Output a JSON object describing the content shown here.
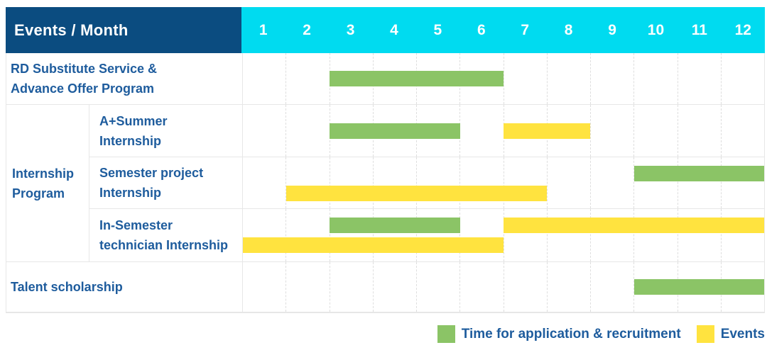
{
  "colors": {
    "header_bg": "#0B4C80",
    "month_header_bg": "#00DBF0",
    "header_text": "#FFFFFF",
    "label_text": "#1E5C9D",
    "grid_line": "#E7E7E7",
    "grid_dash": "#DEDEDE",
    "green": "#8BC466",
    "yellow": "#FFE33F"
  },
  "table": {
    "corner_header": "Events / Month",
    "months": [
      "1",
      "2",
      "3",
      "4",
      "5",
      "6",
      "7",
      "8",
      "9",
      "10",
      "11",
      "12"
    ],
    "rows": [
      {
        "label_lines": [
          "RD Substitute Service &",
          "Advance Offer Program"
        ],
        "label_rowspan": 1,
        "sublabel_lines": null,
        "bars": [
          {
            "color": "green",
            "start_month": 3,
            "end_month": 6,
            "lane": "center"
          }
        ]
      },
      {
        "label_lines": [
          "Internship",
          "Program"
        ],
        "label_rowspan": 3,
        "sublabel_lines": [
          "A+Summer",
          "Internship"
        ],
        "bars": [
          {
            "color": "green",
            "start_month": 3,
            "end_month": 5,
            "lane": "center"
          },
          {
            "color": "yellow",
            "start_month": 7,
            "end_month": 8,
            "lane": "center"
          }
        ]
      },
      {
        "label_lines": null,
        "sublabel_lines": [
          "Semester project",
          "Internship"
        ],
        "bars": [
          {
            "color": "green",
            "start_month": 10,
            "end_month": 12,
            "lane": "top"
          },
          {
            "color": "yellow",
            "start_month": 2,
            "end_month": 7,
            "lane": "bottom"
          }
        ]
      },
      {
        "label_lines": null,
        "sublabel_lines": [
          "In-Semester",
          "technician Internship"
        ],
        "bars": [
          {
            "color": "green",
            "start_month": 3,
            "end_month": 5,
            "lane": "top"
          },
          {
            "color": "yellow",
            "start_month": 7,
            "end_month": 12,
            "lane": "top"
          },
          {
            "color": "yellow",
            "start_month": 1,
            "end_month": 6,
            "lane": "bottom"
          }
        ]
      },
      {
        "label_lines": [
          "Talent scholarship"
        ],
        "label_rowspan": 1,
        "sublabel_lines": null,
        "bars": [
          {
            "color": "green",
            "start_month": 10,
            "end_month": 12,
            "lane": "center"
          }
        ]
      }
    ]
  },
  "legend": [
    {
      "color": "green",
      "label": "Time for application & recruitment"
    },
    {
      "color": "yellow",
      "label": "Events"
    }
  ],
  "chart_data": {
    "type": "bar",
    "subtype": "gantt",
    "title": "Events / Month",
    "xlabel": "Month",
    "x_ticks": [
      1,
      2,
      3,
      4,
      5,
      6,
      7,
      8,
      9,
      10,
      11,
      12
    ],
    "x_range": [
      1,
      12
    ],
    "grid": true,
    "legend_position": "bottom-right",
    "legend": [
      "Time for application & recruitment",
      "Events"
    ],
    "rows": [
      {
        "event": "RD Substitute Service & Advance Offer Program",
        "group": null,
        "segments": [
          {
            "kind": "Time for application & recruitment",
            "start_month": 3,
            "end_month": 6
          }
        ]
      },
      {
        "event": "A+Summer Internship",
        "group": "Internship Program",
        "segments": [
          {
            "kind": "Time for application & recruitment",
            "start_month": 3,
            "end_month": 5
          },
          {
            "kind": "Events",
            "start_month": 7,
            "end_month": 8
          }
        ]
      },
      {
        "event": "Semester project Internship",
        "group": "Internship Program",
        "segments": [
          {
            "kind": "Time for application & recruitment",
            "start_month": 10,
            "end_month": 12
          },
          {
            "kind": "Events",
            "start_month": 2,
            "end_month": 7
          }
        ]
      },
      {
        "event": "In-Semester technician Internship",
        "group": "Internship Program",
        "segments": [
          {
            "kind": "Time for application & recruitment",
            "start_month": 3,
            "end_month": 5
          },
          {
            "kind": "Events",
            "start_month": 7,
            "end_month": 12
          },
          {
            "kind": "Events",
            "start_month": 1,
            "end_month": 6
          }
        ]
      },
      {
        "event": "Talent scholarship",
        "group": null,
        "segments": [
          {
            "kind": "Time for application & recruitment",
            "start_month": 10,
            "end_month": 12
          }
        ]
      }
    ]
  }
}
